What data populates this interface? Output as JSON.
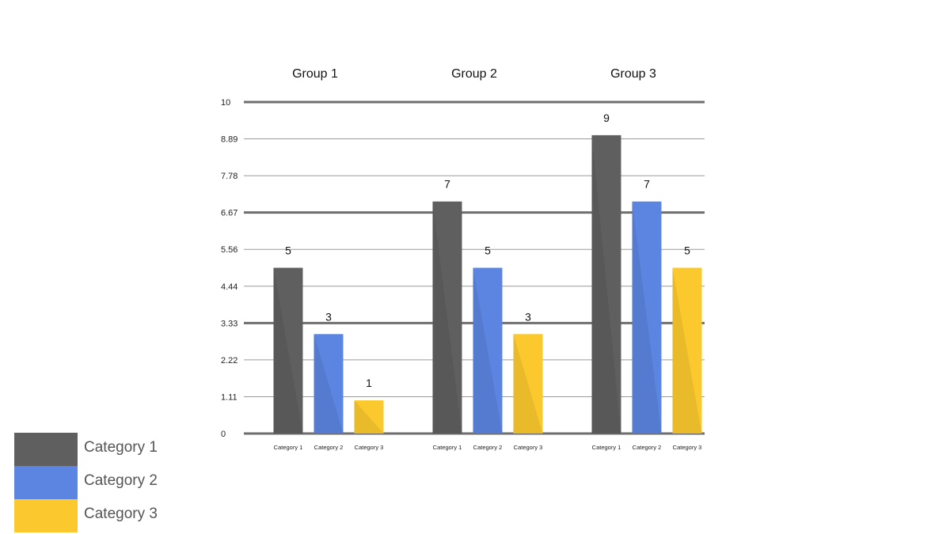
{
  "chart_data": {
    "type": "bar",
    "groups": [
      "Group 1",
      "Group 2",
      "Group 3"
    ],
    "categories": [
      "Category 1",
      "Category 2",
      "Category 3"
    ],
    "series": [
      {
        "name": "Category 1",
        "color": "#5f5f5f",
        "values": [
          5,
          7,
          9
        ]
      },
      {
        "name": "Category 2",
        "color": "#5b85e0",
        "values": [
          3,
          5,
          7
        ]
      },
      {
        "name": "Category 3",
        "color": "#fbc92e",
        "values": [
          1,
          3,
          5
        ]
      }
    ],
    "y_ticks": [
      "0",
      "1.11",
      "2.22",
      "3.33",
      "4.44",
      "5.56",
      "6.67",
      "7.78",
      "8.89",
      "10"
    ],
    "ylim": [
      0,
      10
    ],
    "grid": true,
    "legend_position": "bottom-left",
    "title": "",
    "xlabel": "",
    "ylabel": ""
  }
}
